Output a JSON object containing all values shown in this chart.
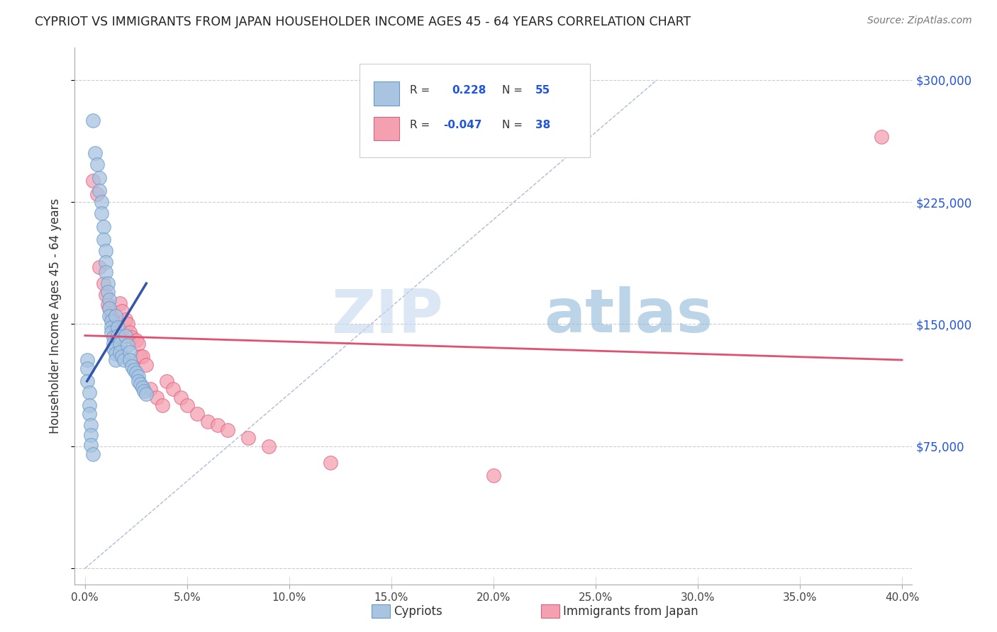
{
  "title": "CYPRIOT VS IMMIGRANTS FROM JAPAN HOUSEHOLDER INCOME AGES 45 - 64 YEARS CORRELATION CHART",
  "source": "Source: ZipAtlas.com",
  "xlabel_ticks": [
    "0.0%",
    "",
    "5.0%",
    "",
    "10.0%",
    "",
    "15.0%",
    "",
    "20.0%",
    "",
    "25.0%",
    "",
    "30.0%",
    "",
    "35.0%",
    "",
    "40.0%"
  ],
  "xlabel_vals": [
    0.0,
    0.025,
    0.05,
    0.075,
    0.1,
    0.125,
    0.15,
    0.175,
    0.2,
    0.225,
    0.25,
    0.275,
    0.3,
    0.325,
    0.35,
    0.375,
    0.4
  ],
  "ylabel_ticks": [
    0,
    75000,
    150000,
    225000,
    300000
  ],
  "ylabel_labels": [
    "",
    "$75,000",
    "$150,000",
    "$225,000",
    "$300,000"
  ],
  "ylabel_label": "Householder Income Ages 45 - 64 years",
  "xlim": [
    -0.005,
    0.405
  ],
  "ylim": [
    -10000,
    320000
  ],
  "cypriot_color": "#a8c4e0",
  "japan_color": "#f4a0b0",
  "cypriot_edge": "#6699cc",
  "japan_edge": "#e06080",
  "trendline_cypriot_color": "#3355aa",
  "trendline_japan_color": "#e05070",
  "refline_color": "#99aacc",
  "grid_color": "#cccccc",
  "R_cypriot": 0.228,
  "N_cypriot": 55,
  "R_japan": -0.047,
  "N_japan": 38,
  "legend_label1": "Cypriots",
  "legend_label2": "Immigrants from Japan",
  "watermark_zip": "ZIP",
  "watermark_atlas": "atlas",
  "cypriot_x": [
    0.004,
    0.005,
    0.006,
    0.007,
    0.007,
    0.008,
    0.008,
    0.009,
    0.009,
    0.01,
    0.01,
    0.01,
    0.011,
    0.011,
    0.012,
    0.012,
    0.012,
    0.013,
    0.013,
    0.013,
    0.014,
    0.014,
    0.014,
    0.015,
    0.015,
    0.015,
    0.016,
    0.016,
    0.017,
    0.017,
    0.018,
    0.019,
    0.02,
    0.021,
    0.022,
    0.022,
    0.023,
    0.024,
    0.025,
    0.026,
    0.026,
    0.027,
    0.028,
    0.029,
    0.03,
    0.001,
    0.001,
    0.001,
    0.002,
    0.002,
    0.002,
    0.003,
    0.003,
    0.003,
    0.004
  ],
  "cypriot_y": [
    275000,
    255000,
    248000,
    240000,
    232000,
    225000,
    218000,
    210000,
    202000,
    195000,
    188000,
    182000,
    175000,
    170000,
    165000,
    160000,
    155000,
    152000,
    148000,
    145000,
    142000,
    138000,
    135000,
    132000,
    128000,
    155000,
    148000,
    143000,
    138000,
    133000,
    130000,
    128000,
    143000,
    137000,
    133000,
    128000,
    124000,
    122000,
    120000,
    118000,
    115000,
    113000,
    111000,
    109000,
    107000,
    128000,
    123000,
    115000,
    108000,
    100000,
    95000,
    88000,
    82000,
    76000,
    70000
  ],
  "japan_x": [
    0.004,
    0.006,
    0.007,
    0.009,
    0.01,
    0.011,
    0.012,
    0.013,
    0.014,
    0.015,
    0.016,
    0.017,
    0.018,
    0.02,
    0.021,
    0.022,
    0.023,
    0.025,
    0.026,
    0.027,
    0.028,
    0.03,
    0.032,
    0.035,
    0.038,
    0.04,
    0.043,
    0.047,
    0.05,
    0.055,
    0.06,
    0.065,
    0.07,
    0.08,
    0.09,
    0.12,
    0.2,
    0.39
  ],
  "japan_y": [
    238000,
    230000,
    185000,
    175000,
    168000,
    162000,
    160000,
    155000,
    152000,
    148000,
    145000,
    163000,
    158000,
    153000,
    150000,
    145000,
    142000,
    140000,
    138000,
    130000,
    130000,
    125000,
    110000,
    105000,
    100000,
    115000,
    110000,
    105000,
    100000,
    95000,
    90000,
    88000,
    85000,
    80000,
    75000,
    65000,
    57000,
    265000
  ],
  "trendline_cyp_x0": 0.001,
  "trendline_cyp_x1": 0.03,
  "trendline_cyp_y0": 115000,
  "trendline_cyp_y1": 175000,
  "trendline_jpn_x0": 0.0,
  "trendline_jpn_x1": 0.4,
  "trendline_jpn_y0": 143000,
  "trendline_jpn_y1": 128000,
  "refline_x0": 0.0,
  "refline_x1": 0.28,
  "refline_y0": 0,
  "refline_y1": 300000
}
